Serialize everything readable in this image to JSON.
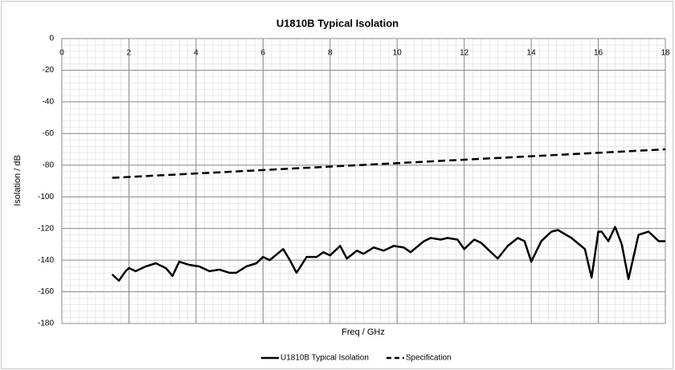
{
  "chart_data": {
    "type": "line",
    "title": "U1810B Typical Isolation",
    "xlabel": "Freq / GHz",
    "ylabel": "Isolation / dB",
    "xlim": [
      0,
      18
    ],
    "xticks": [
      0,
      2,
      4,
      6,
      8,
      10,
      12,
      14,
      16,
      18
    ],
    "ylim": [
      -180,
      0
    ],
    "yticks": [
      0,
      -20,
      -40,
      -60,
      -80,
      -100,
      -120,
      -140,
      -160,
      -180
    ],
    "grid": true,
    "legend": "bottom",
    "series": [
      {
        "name": "U1810B Typical Isolation",
        "color": "#000000",
        "dash": "solid",
        "x": [
          1.5,
          1.7,
          1.9,
          2.0,
          2.2,
          2.5,
          2.8,
          3.1,
          3.3,
          3.5,
          3.8,
          4.1,
          4.4,
          4.7,
          5.0,
          5.2,
          5.5,
          5.8,
          6.0,
          6.2,
          6.6,
          6.8,
          7.0,
          7.3,
          7.6,
          7.8,
          8.0,
          8.3,
          8.5,
          8.8,
          9.0,
          9.3,
          9.6,
          9.9,
          10.2,
          10.4,
          10.8,
          11.0,
          11.3,
          11.5,
          11.8,
          12.0,
          12.3,
          12.5,
          12.8,
          13.0,
          13.3,
          13.6,
          13.8,
          14.0,
          14.3,
          14.6,
          14.8,
          15.2,
          15.6,
          15.8,
          16.0,
          16.1,
          16.3,
          16.5,
          16.7,
          16.9,
          17.2,
          17.5,
          17.8,
          18.0
        ],
        "values": [
          -149,
          -153,
          -147,
          -145,
          -147,
          -144,
          -142,
          -145,
          -150,
          -141,
          -143,
          -144,
          -147,
          -146,
          -148,
          -148,
          -144,
          -142,
          -138,
          -140,
          -133,
          -140,
          -148,
          -138,
          -138,
          -135,
          -137,
          -131,
          -139,
          -134,
          -136,
          -132,
          -134,
          -131,
          -132,
          -135,
          -128,
          -126,
          -127,
          -126,
          -127,
          -133,
          -127,
          -129,
          -135,
          -139,
          -131,
          -126,
          -128,
          -141,
          -128,
          -122,
          -121,
          -126,
          -133,
          -151,
          -122,
          -122,
          -128,
          -119,
          -130,
          -152,
          -124,
          -122,
          -128,
          -128
        ]
      },
      {
        "name": "Specification",
        "color": "#000000",
        "dash": "dashed",
        "x": [
          1.5,
          18
        ],
        "values": [
          -88,
          -70
        ]
      }
    ]
  }
}
